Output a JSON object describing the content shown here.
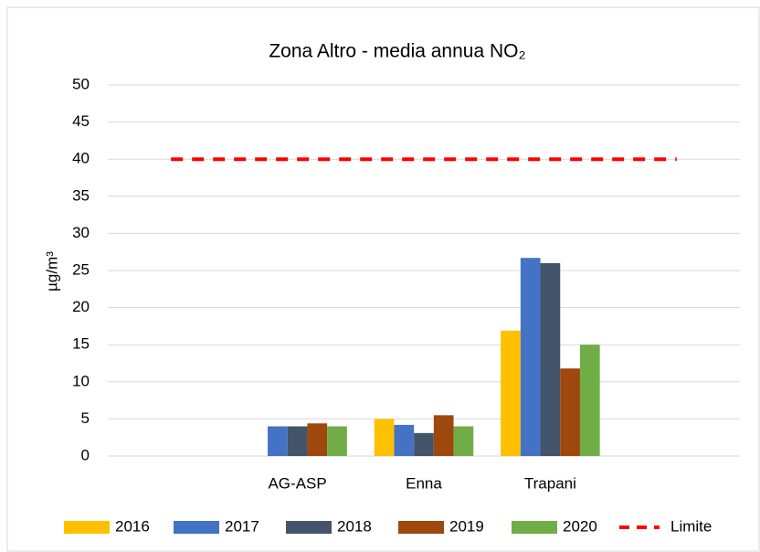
{
  "chart_data": {
    "type": "bar",
    "title": "Zona Altro - media annua NO₂",
    "y_label": "µg/m³",
    "categories": [
      null,
      "AG-ASP",
      "Enna",
      "Trapani",
      null
    ],
    "series": [
      {
        "name": "2016",
        "color": "#ffc000",
        "values": [
          null,
          null,
          5,
          16.9,
          null
        ]
      },
      {
        "name": "2017",
        "color": "#4472c4",
        "values": [
          null,
          4,
          4.2,
          26.7,
          null
        ]
      },
      {
        "name": "2018",
        "color": "#44546a",
        "values": [
          null,
          4,
          3.1,
          26,
          null
        ]
      },
      {
        "name": "2019",
        "color": "#9e480e",
        "values": [
          null,
          4.4,
          5.5,
          11.8,
          null
        ]
      },
      {
        "name": "2020",
        "color": "#70ad47",
        "values": [
          null,
          4,
          4,
          15,
          null
        ]
      },
      {
        "name": "Limite",
        "type": "line",
        "dashed": true,
        "color": "#ff0000",
        "values": [
          40,
          40,
          40,
          40,
          40
        ]
      }
    ],
    "ylim": [
      0,
      50
    ],
    "yticks": [
      0,
      5,
      10,
      15,
      20,
      25,
      30,
      35,
      40,
      45,
      50
    ],
    "grid": true,
    "legend": "bottom"
  }
}
